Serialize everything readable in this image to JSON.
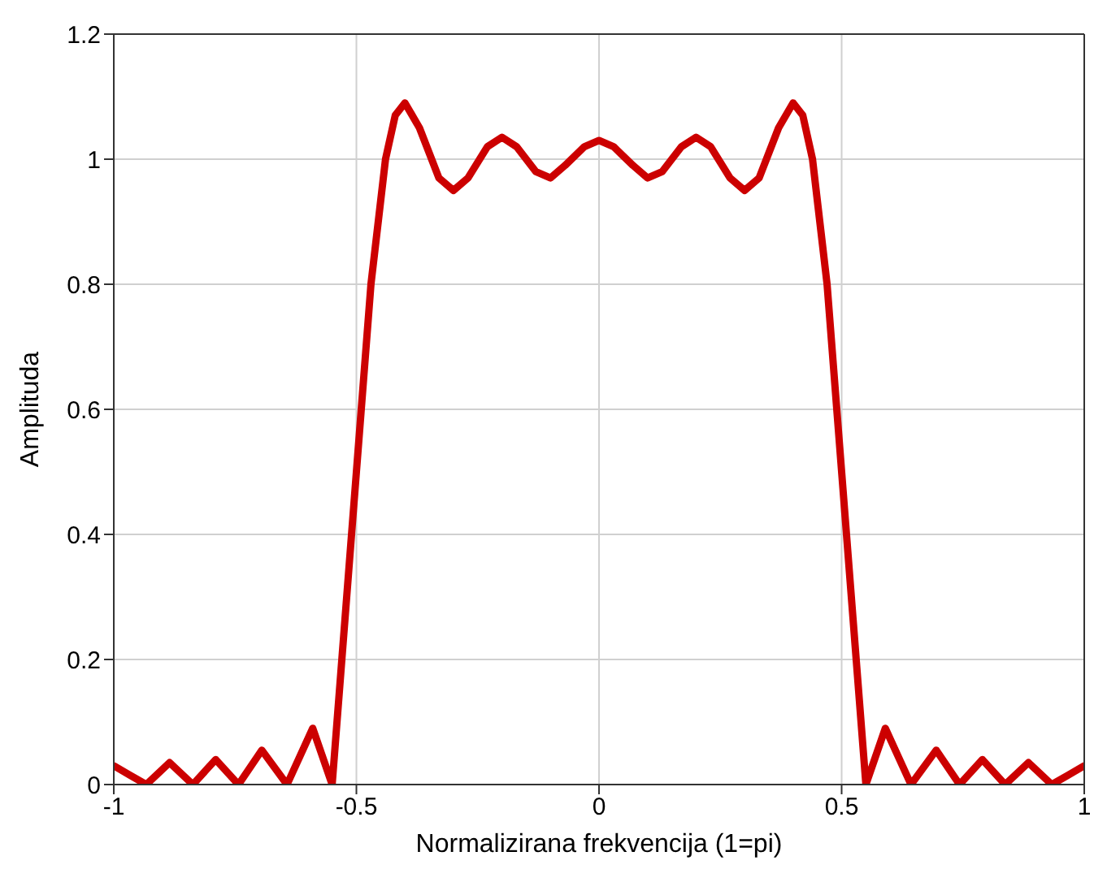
{
  "chart_data": {
    "type": "line",
    "xlabel": "Normalizirana frekvencija (1=pi)",
    "ylabel": "Amplituda",
    "x": [
      -1,
      -0.967,
      -0.933,
      -0.885,
      -0.837,
      -0.79,
      -0.743,
      -0.695,
      -0.643,
      -0.59,
      -0.55,
      -0.53,
      -0.5,
      -0.47,
      -0.44,
      -0.42,
      -0.4,
      -0.37,
      -0.33,
      -0.3,
      -0.27,
      -0.23,
      -0.2,
      -0.17,
      -0.13,
      -0.1,
      -0.07,
      -0.03,
      0,
      0.03,
      0.07,
      0.1,
      0.13,
      0.17,
      0.2,
      0.23,
      0.27,
      0.3,
      0.33,
      0.37,
      0.4,
      0.42,
      0.44,
      0.47,
      0.5,
      0.53,
      0.55,
      0.59,
      0.643,
      0.695,
      0.743,
      0.79,
      0.837,
      0.885,
      0.933,
      0.967,
      1
    ],
    "series": [
      {
        "color": "#cc0000",
        "values": [
          0.03,
          0.015,
          0,
          0.035,
          0,
          0.04,
          0,
          0.055,
          0,
          0.09,
          0,
          0.2,
          0.5,
          0.8,
          1.0,
          1.07,
          1.09,
          1.05,
          0.97,
          0.95,
          0.97,
          1.02,
          1.035,
          1.02,
          0.98,
          0.97,
          0.99,
          1.02,
          1.03,
          1.02,
          0.99,
          0.97,
          0.98,
          1.02,
          1.035,
          1.02,
          0.97,
          0.95,
          0.97,
          1.05,
          1.09,
          1.07,
          1.0,
          0.8,
          0.5,
          0.2,
          0,
          0.09,
          0,
          0.055,
          0,
          0.04,
          0,
          0.035,
          0,
          0.015,
          0.03
        ]
      }
    ],
    "xlim": [
      -1,
      1
    ],
    "xticks": [
      -1,
      -0.5,
      0,
      0.5,
      1
    ],
    "ylim": [
      0,
      1.2
    ],
    "yticks": [
      0,
      0.2,
      0.4,
      0.6,
      0.8,
      1,
      1.2
    ],
    "grid": true,
    "marker": "none",
    "line_style": "solid"
  }
}
